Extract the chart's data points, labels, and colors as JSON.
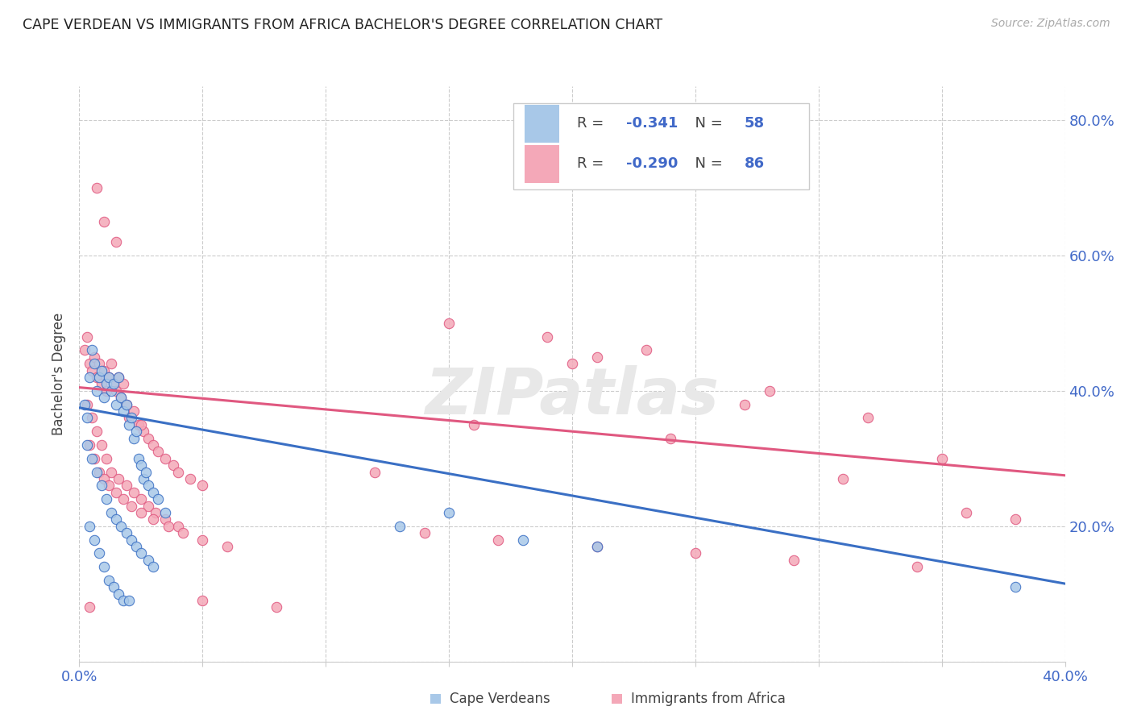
{
  "title": "CAPE VERDEAN VS IMMIGRANTS FROM AFRICA BACHELOR'S DEGREE CORRELATION CHART",
  "source": "Source: ZipAtlas.com",
  "ylabel": "Bachelor's Degree",
  "watermark": "ZIPatlas",
  "legend_r1": "-0.341",
  "legend_n1": "58",
  "legend_r2": "-0.290",
  "legend_n2": "86",
  "legend_label1": "Cape Verdeans",
  "legend_label2": "Immigrants from Africa",
  "color_blue": "#a8c8e8",
  "color_pink": "#f4a8b8",
  "line_color_blue": "#3a6fc4",
  "line_color_pink": "#e05880",
  "text_color": "#4169c8",
  "axis_color": "#cccccc",
  "blue_scatter_x": [
    0.002,
    0.003,
    0.004,
    0.005,
    0.006,
    0.007,
    0.008,
    0.009,
    0.01,
    0.011,
    0.012,
    0.013,
    0.014,
    0.015,
    0.016,
    0.017,
    0.018,
    0.019,
    0.02,
    0.021,
    0.022,
    0.023,
    0.024,
    0.025,
    0.026,
    0.027,
    0.028,
    0.03,
    0.032,
    0.035,
    0.003,
    0.005,
    0.007,
    0.009,
    0.011,
    0.013,
    0.015,
    0.017,
    0.019,
    0.021,
    0.023,
    0.025,
    0.028,
    0.03,
    0.004,
    0.006,
    0.008,
    0.01,
    0.012,
    0.014,
    0.016,
    0.018,
    0.02,
    0.13,
    0.15,
    0.18,
    0.21,
    0.38
  ],
  "blue_scatter_y": [
    0.38,
    0.36,
    0.42,
    0.46,
    0.44,
    0.4,
    0.42,
    0.43,
    0.39,
    0.41,
    0.42,
    0.4,
    0.41,
    0.38,
    0.42,
    0.39,
    0.37,
    0.38,
    0.35,
    0.36,
    0.33,
    0.34,
    0.3,
    0.29,
    0.27,
    0.28,
    0.26,
    0.25,
    0.24,
    0.22,
    0.32,
    0.3,
    0.28,
    0.26,
    0.24,
    0.22,
    0.21,
    0.2,
    0.19,
    0.18,
    0.17,
    0.16,
    0.15,
    0.14,
    0.2,
    0.18,
    0.16,
    0.14,
    0.12,
    0.11,
    0.1,
    0.09,
    0.09,
    0.2,
    0.22,
    0.18,
    0.17,
    0.11
  ],
  "pink_scatter_x": [
    0.002,
    0.003,
    0.004,
    0.005,
    0.006,
    0.007,
    0.008,
    0.009,
    0.01,
    0.011,
    0.012,
    0.013,
    0.014,
    0.015,
    0.016,
    0.017,
    0.018,
    0.019,
    0.02,
    0.022,
    0.024,
    0.026,
    0.028,
    0.03,
    0.032,
    0.035,
    0.038,
    0.04,
    0.045,
    0.05,
    0.003,
    0.005,
    0.007,
    0.009,
    0.011,
    0.013,
    0.016,
    0.019,
    0.022,
    0.025,
    0.028,
    0.031,
    0.035,
    0.04,
    0.004,
    0.006,
    0.008,
    0.01,
    0.012,
    0.015,
    0.018,
    0.021,
    0.025,
    0.03,
    0.036,
    0.042,
    0.05,
    0.06,
    0.14,
    0.17,
    0.21,
    0.25,
    0.29,
    0.34,
    0.36,
    0.38,
    0.21,
    0.28,
    0.32,
    0.35,
    0.15,
    0.19,
    0.23,
    0.27,
    0.31,
    0.24,
    0.2,
    0.16,
    0.12,
    0.08,
    0.05,
    0.025,
    0.015,
    0.01,
    0.007,
    0.004
  ],
  "pink_scatter_y": [
    0.46,
    0.48,
    0.44,
    0.43,
    0.45,
    0.42,
    0.44,
    0.41,
    0.43,
    0.4,
    0.42,
    0.44,
    0.41,
    0.4,
    0.42,
    0.39,
    0.41,
    0.38,
    0.36,
    0.37,
    0.35,
    0.34,
    0.33,
    0.32,
    0.31,
    0.3,
    0.29,
    0.28,
    0.27,
    0.26,
    0.38,
    0.36,
    0.34,
    0.32,
    0.3,
    0.28,
    0.27,
    0.26,
    0.25,
    0.24,
    0.23,
    0.22,
    0.21,
    0.2,
    0.32,
    0.3,
    0.28,
    0.27,
    0.26,
    0.25,
    0.24,
    0.23,
    0.22,
    0.21,
    0.2,
    0.19,
    0.18,
    0.17,
    0.19,
    0.18,
    0.17,
    0.16,
    0.15,
    0.14,
    0.22,
    0.21,
    0.45,
    0.4,
    0.36,
    0.3,
    0.5,
    0.48,
    0.46,
    0.38,
    0.27,
    0.33,
    0.44,
    0.35,
    0.28,
    0.08,
    0.09,
    0.35,
    0.62,
    0.65,
    0.7,
    0.08
  ],
  "xmin": 0.0,
  "xmax": 0.4,
  "ymin": 0.0,
  "ymax": 0.85,
  "blue_trend_x": [
    0.0,
    0.4
  ],
  "blue_trend_y": [
    0.375,
    0.115
  ],
  "pink_trend_x": [
    0.0,
    0.4
  ],
  "pink_trend_y": [
    0.405,
    0.275
  ]
}
